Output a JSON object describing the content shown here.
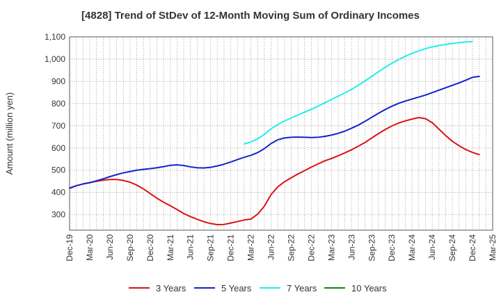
{
  "chart_data": {
    "type": "line",
    "title": "[4828]  Trend of StDev of 12-Month Moving Sum of Ordinary Incomes",
    "xlabel": "",
    "ylabel": "Amount (million yen)",
    "ylim": [
      230,
      1100
    ],
    "yticks": [
      300,
      400,
      500,
      600,
      700,
      800,
      900,
      1000,
      1100
    ],
    "ytick_labels": [
      "300",
      "400",
      "500",
      "600",
      "700",
      "800",
      "900",
      "1,000",
      "1,100"
    ],
    "xlim": [
      "2019-12",
      "2025-03"
    ],
    "xtick_labels": [
      "Dec-19",
      "Mar-20",
      "Jun-20",
      "Sep-20",
      "Dec-20",
      "Mar-21",
      "Jun-21",
      "Sep-21",
      "Dec-21",
      "Mar-22",
      "Jun-22",
      "Sep-22",
      "Dec-22",
      "Mar-23",
      "Jun-23",
      "Sep-23",
      "Dec-23",
      "Mar-24",
      "Jun-24",
      "Sep-24",
      "Dec-24",
      "Mar-25"
    ],
    "grid": true,
    "legend_position": "bottom",
    "series": [
      {
        "name": "3 Years",
        "color": "#dd1111",
        "points": [
          [
            "2019-12",
            418
          ],
          [
            "2020-01",
            430
          ],
          [
            "2020-02",
            438
          ],
          [
            "2020-03",
            444
          ],
          [
            "2020-04",
            450
          ],
          [
            "2020-05",
            455
          ],
          [
            "2020-06",
            458
          ],
          [
            "2020-07",
            458
          ],
          [
            "2020-08",
            454
          ],
          [
            "2020-09",
            446
          ],
          [
            "2020-10",
            433
          ],
          [
            "2020-11",
            416
          ],
          [
            "2020-12",
            395
          ],
          [
            "2021-01",
            374
          ],
          [
            "2021-02",
            356
          ],
          [
            "2021-03",
            340
          ],
          [
            "2021-04",
            323
          ],
          [
            "2021-05",
            305
          ],
          [
            "2021-06",
            291
          ],
          [
            "2021-07",
            279
          ],
          [
            "2021-08",
            268
          ],
          [
            "2021-09",
            260
          ],
          [
            "2021-10",
            255
          ],
          [
            "2021-11",
            256
          ],
          [
            "2021-12",
            262
          ],
          [
            "2022-01",
            269
          ],
          [
            "2022-02",
            276
          ],
          [
            "2022-03",
            280
          ],
          [
            "2022-04",
            302
          ],
          [
            "2022-05",
            338
          ],
          [
            "2022-06",
            390
          ],
          [
            "2022-07",
            425
          ],
          [
            "2022-08",
            448
          ],
          [
            "2022-09",
            466
          ],
          [
            "2022-10",
            483
          ],
          [
            "2022-11",
            498
          ],
          [
            "2022-12",
            514
          ],
          [
            "2023-01",
            528
          ],
          [
            "2023-02",
            542
          ],
          [
            "2023-03",
            553
          ],
          [
            "2023-04",
            565
          ],
          [
            "2023-05",
            578
          ],
          [
            "2023-06",
            592
          ],
          [
            "2023-07",
            608
          ],
          [
            "2023-08",
            625
          ],
          [
            "2023-09",
            645
          ],
          [
            "2023-10",
            665
          ],
          [
            "2023-11",
            683
          ],
          [
            "2023-12",
            699
          ],
          [
            "2024-01",
            712
          ],
          [
            "2024-02",
            722
          ],
          [
            "2024-03",
            730
          ],
          [
            "2024-04",
            737
          ],
          [
            "2024-05",
            732
          ],
          [
            "2024-06",
            714
          ],
          [
            "2024-07",
            685
          ],
          [
            "2024-08",
            656
          ],
          [
            "2024-09",
            630
          ],
          [
            "2024-10",
            610
          ],
          [
            "2024-11",
            593
          ],
          [
            "2024-12",
            580
          ],
          [
            "2025-01",
            570
          ]
        ]
      },
      {
        "name": "5 Years",
        "color": "#1122cc",
        "points": [
          [
            "2019-12",
            420
          ],
          [
            "2020-01",
            430
          ],
          [
            "2020-02",
            438
          ],
          [
            "2020-03",
            444
          ],
          [
            "2020-04",
            452
          ],
          [
            "2020-05",
            461
          ],
          [
            "2020-06",
            471
          ],
          [
            "2020-07",
            480
          ],
          [
            "2020-08",
            488
          ],
          [
            "2020-09",
            494
          ],
          [
            "2020-10",
            500
          ],
          [
            "2020-11",
            504
          ],
          [
            "2020-12",
            507
          ],
          [
            "2021-01",
            511
          ],
          [
            "2021-02",
            516
          ],
          [
            "2021-03",
            522
          ],
          [
            "2021-04",
            524
          ],
          [
            "2021-05",
            521
          ],
          [
            "2021-06",
            515
          ],
          [
            "2021-07",
            511
          ],
          [
            "2021-08",
            510
          ],
          [
            "2021-09",
            513
          ],
          [
            "2021-10",
            519
          ],
          [
            "2021-11",
            527
          ],
          [
            "2021-12",
            537
          ],
          [
            "2022-01",
            548
          ],
          [
            "2022-02",
            558
          ],
          [
            "2022-03",
            567
          ],
          [
            "2022-04",
            579
          ],
          [
            "2022-05",
            597
          ],
          [
            "2022-06",
            620
          ],
          [
            "2022-07",
            637
          ],
          [
            "2022-08",
            645
          ],
          [
            "2022-09",
            648
          ],
          [
            "2022-10",
            649
          ],
          [
            "2022-11",
            648
          ],
          [
            "2022-12",
            647
          ],
          [
            "2023-01",
            648
          ],
          [
            "2023-02",
            652
          ],
          [
            "2023-03",
            658
          ],
          [
            "2023-04",
            666
          ],
          [
            "2023-05",
            676
          ],
          [
            "2023-06",
            689
          ],
          [
            "2023-07",
            703
          ],
          [
            "2023-08",
            720
          ],
          [
            "2023-09",
            738
          ],
          [
            "2023-10",
            756
          ],
          [
            "2023-11",
            773
          ],
          [
            "2023-12",
            788
          ],
          [
            "2024-01",
            801
          ],
          [
            "2024-02",
            811
          ],
          [
            "2024-03",
            820
          ],
          [
            "2024-04",
            829
          ],
          [
            "2024-05",
            838
          ],
          [
            "2024-06",
            849
          ],
          [
            "2024-07",
            860
          ],
          [
            "2024-08",
            871
          ],
          [
            "2024-09",
            882
          ],
          [
            "2024-10",
            893
          ],
          [
            "2024-11",
            905
          ],
          [
            "2024-12",
            918
          ],
          [
            "2025-01",
            922
          ]
        ]
      },
      {
        "name": "7 Years",
        "color": "#22eeee",
        "points": [
          [
            "2022-02",
            618
          ],
          [
            "2022-03",
            627
          ],
          [
            "2022-04",
            641
          ],
          [
            "2022-05",
            661
          ],
          [
            "2022-06",
            686
          ],
          [
            "2022-07",
            706
          ],
          [
            "2022-08",
            721
          ],
          [
            "2022-09",
            735
          ],
          [
            "2022-10",
            748
          ],
          [
            "2022-11",
            761
          ],
          [
            "2022-12",
            774
          ],
          [
            "2023-01",
            788
          ],
          [
            "2023-02",
            803
          ],
          [
            "2023-03",
            818
          ],
          [
            "2023-04",
            833
          ],
          [
            "2023-05",
            848
          ],
          [
            "2023-06",
            864
          ],
          [
            "2023-07",
            882
          ],
          [
            "2023-08",
            902
          ],
          [
            "2023-09",
            922
          ],
          [
            "2023-10",
            943
          ],
          [
            "2023-11",
            963
          ],
          [
            "2023-12",
            981
          ],
          [
            "2024-01",
            998
          ],
          [
            "2024-02",
            1013
          ],
          [
            "2024-03",
            1026
          ],
          [
            "2024-04",
            1037
          ],
          [
            "2024-05",
            1047
          ],
          [
            "2024-06",
            1055
          ],
          [
            "2024-07",
            1061
          ],
          [
            "2024-08",
            1066
          ],
          [
            "2024-09",
            1070
          ],
          [
            "2024-10",
            1074
          ],
          [
            "2024-11",
            1077
          ],
          [
            "2024-12",
            1079
          ]
        ]
      },
      {
        "name": "10 Years",
        "color": "#118811",
        "points": []
      }
    ]
  }
}
